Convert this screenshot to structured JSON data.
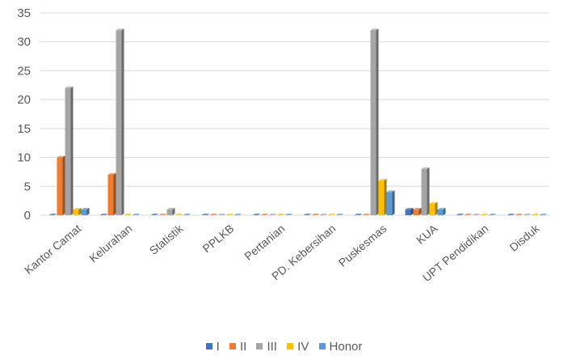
{
  "chart_data": {
    "type": "bar",
    "title": "",
    "xlabel": "",
    "ylabel": "",
    "categories": [
      "Kantor Camat",
      "Kelurahan",
      "Statistik",
      "PPLKB",
      "Pertanian",
      "PD. Kebersihan",
      "Puskesmas",
      "KUA",
      "UPT Pendidikan",
      "Disduk"
    ],
    "y_ticks": [
      "0",
      "5",
      "10",
      "15",
      "20",
      "25",
      "30",
      "35"
    ],
    "ylim": [
      0,
      35
    ],
    "grid": true,
    "legend_position": "bottom",
    "style": "3d-clustered-column",
    "series": [
      {
        "name": "I",
        "color": "#4472C4",
        "values": [
          0,
          0,
          0,
          0,
          0,
          0,
          0,
          1,
          0,
          0
        ]
      },
      {
        "name": "II",
        "color": "#ED7D31",
        "values": [
          10,
          7,
          0,
          0,
          0,
          0,
          0,
          1,
          0,
          0
        ]
      },
      {
        "name": "III",
        "color": "#A5A5A5",
        "values": [
          22,
          32,
          1,
          0,
          0,
          0,
          32,
          8,
          0,
          0
        ]
      },
      {
        "name": "IV",
        "color": "#FFC000",
        "values": [
          1,
          0,
          0,
          0,
          0,
          0,
          6,
          2,
          0,
          0
        ]
      },
      {
        "name": "Honor",
        "color": "#5B9BD5",
        "values": [
          1,
          0,
          0,
          0,
          0,
          0,
          4,
          1,
          0,
          0
        ]
      }
    ]
  }
}
